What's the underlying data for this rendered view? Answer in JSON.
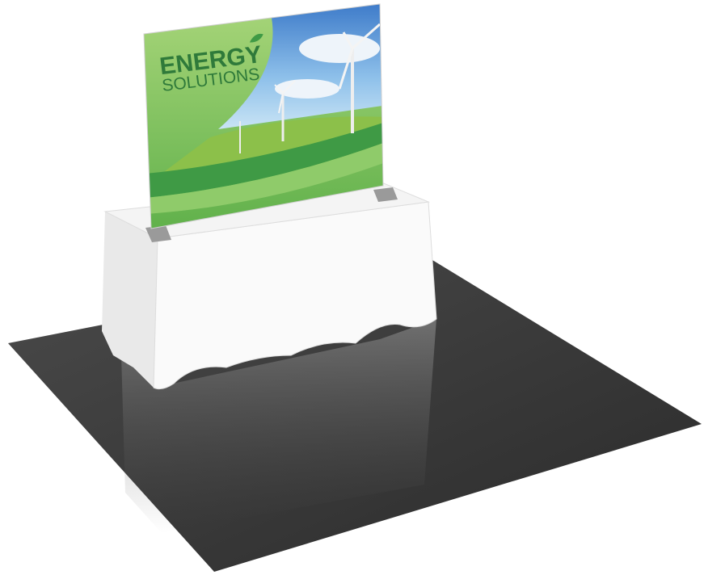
{
  "banner": {
    "title": "ENERGY",
    "subtitle": "SOLUTIONS"
  }
}
